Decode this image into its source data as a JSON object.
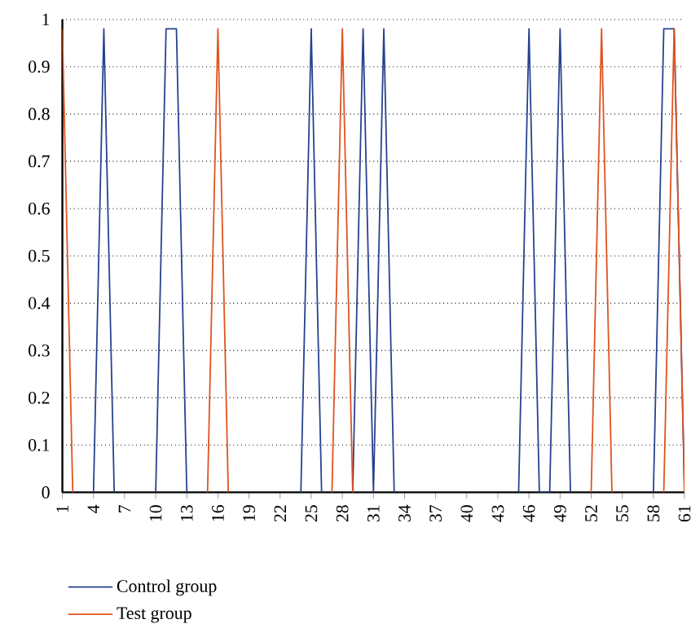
{
  "chart_data": {
    "type": "line",
    "x": [
      1,
      2,
      3,
      4,
      5,
      6,
      7,
      8,
      9,
      10,
      11,
      12,
      13,
      14,
      15,
      16,
      17,
      18,
      19,
      20,
      21,
      22,
      23,
      24,
      25,
      26,
      27,
      28,
      29,
      30,
      31,
      32,
      33,
      34,
      35,
      36,
      37,
      38,
      39,
      40,
      41,
      42,
      43,
      44,
      45,
      46,
      47,
      48,
      49,
      50,
      51,
      52,
      53,
      54,
      55,
      56,
      57,
      58,
      59,
      60,
      61
    ],
    "series": [
      {
        "name": "Control group",
        "color": "#26418f",
        "values": [
          null,
          null,
          null,
          0,
          0.98,
          0,
          null,
          null,
          null,
          0,
          0.98,
          0.98,
          0,
          null,
          null,
          null,
          null,
          null,
          null,
          null,
          null,
          null,
          null,
          0,
          0.98,
          0,
          null,
          null,
          0,
          0.98,
          0,
          0.98,
          0,
          null,
          null,
          null,
          null,
          null,
          null,
          null,
          null,
          null,
          null,
          null,
          0,
          0.98,
          0,
          0,
          0.98,
          0,
          null,
          null,
          null,
          null,
          null,
          null,
          null,
          0,
          0.98,
          0.98,
          0
        ]
      },
      {
        "name": "Test group",
        "color": "#e0521f",
        "values": [
          0.98,
          0,
          null,
          null,
          null,
          null,
          null,
          null,
          null,
          null,
          null,
          null,
          null,
          null,
          0,
          0.98,
          0,
          null,
          null,
          null,
          null,
          null,
          null,
          null,
          null,
          null,
          0,
          0.98,
          0,
          null,
          null,
          null,
          null,
          null,
          null,
          null,
          null,
          null,
          null,
          null,
          null,
          null,
          null,
          null,
          null,
          null,
          null,
          null,
          null,
          null,
          null,
          0,
          0.98,
          0,
          null,
          null,
          null,
          null,
          0,
          0.98,
          0
        ]
      }
    ],
    "xlim": [
      1,
      61
    ],
    "ylim": [
      0,
      1
    ],
    "xticks": [
      1,
      4,
      7,
      10,
      13,
      16,
      19,
      22,
      25,
      28,
      31,
      34,
      37,
      40,
      43,
      46,
      49,
      52,
      55,
      58,
      61
    ],
    "yticks": [
      0,
      0.1,
      0.2,
      0.3,
      0.4,
      0.5,
      0.6,
      0.7,
      0.8,
      0.9,
      1
    ],
    "grid": "y",
    "legend": "bottom",
    "marker": "none",
    "line_style": "solid"
  }
}
